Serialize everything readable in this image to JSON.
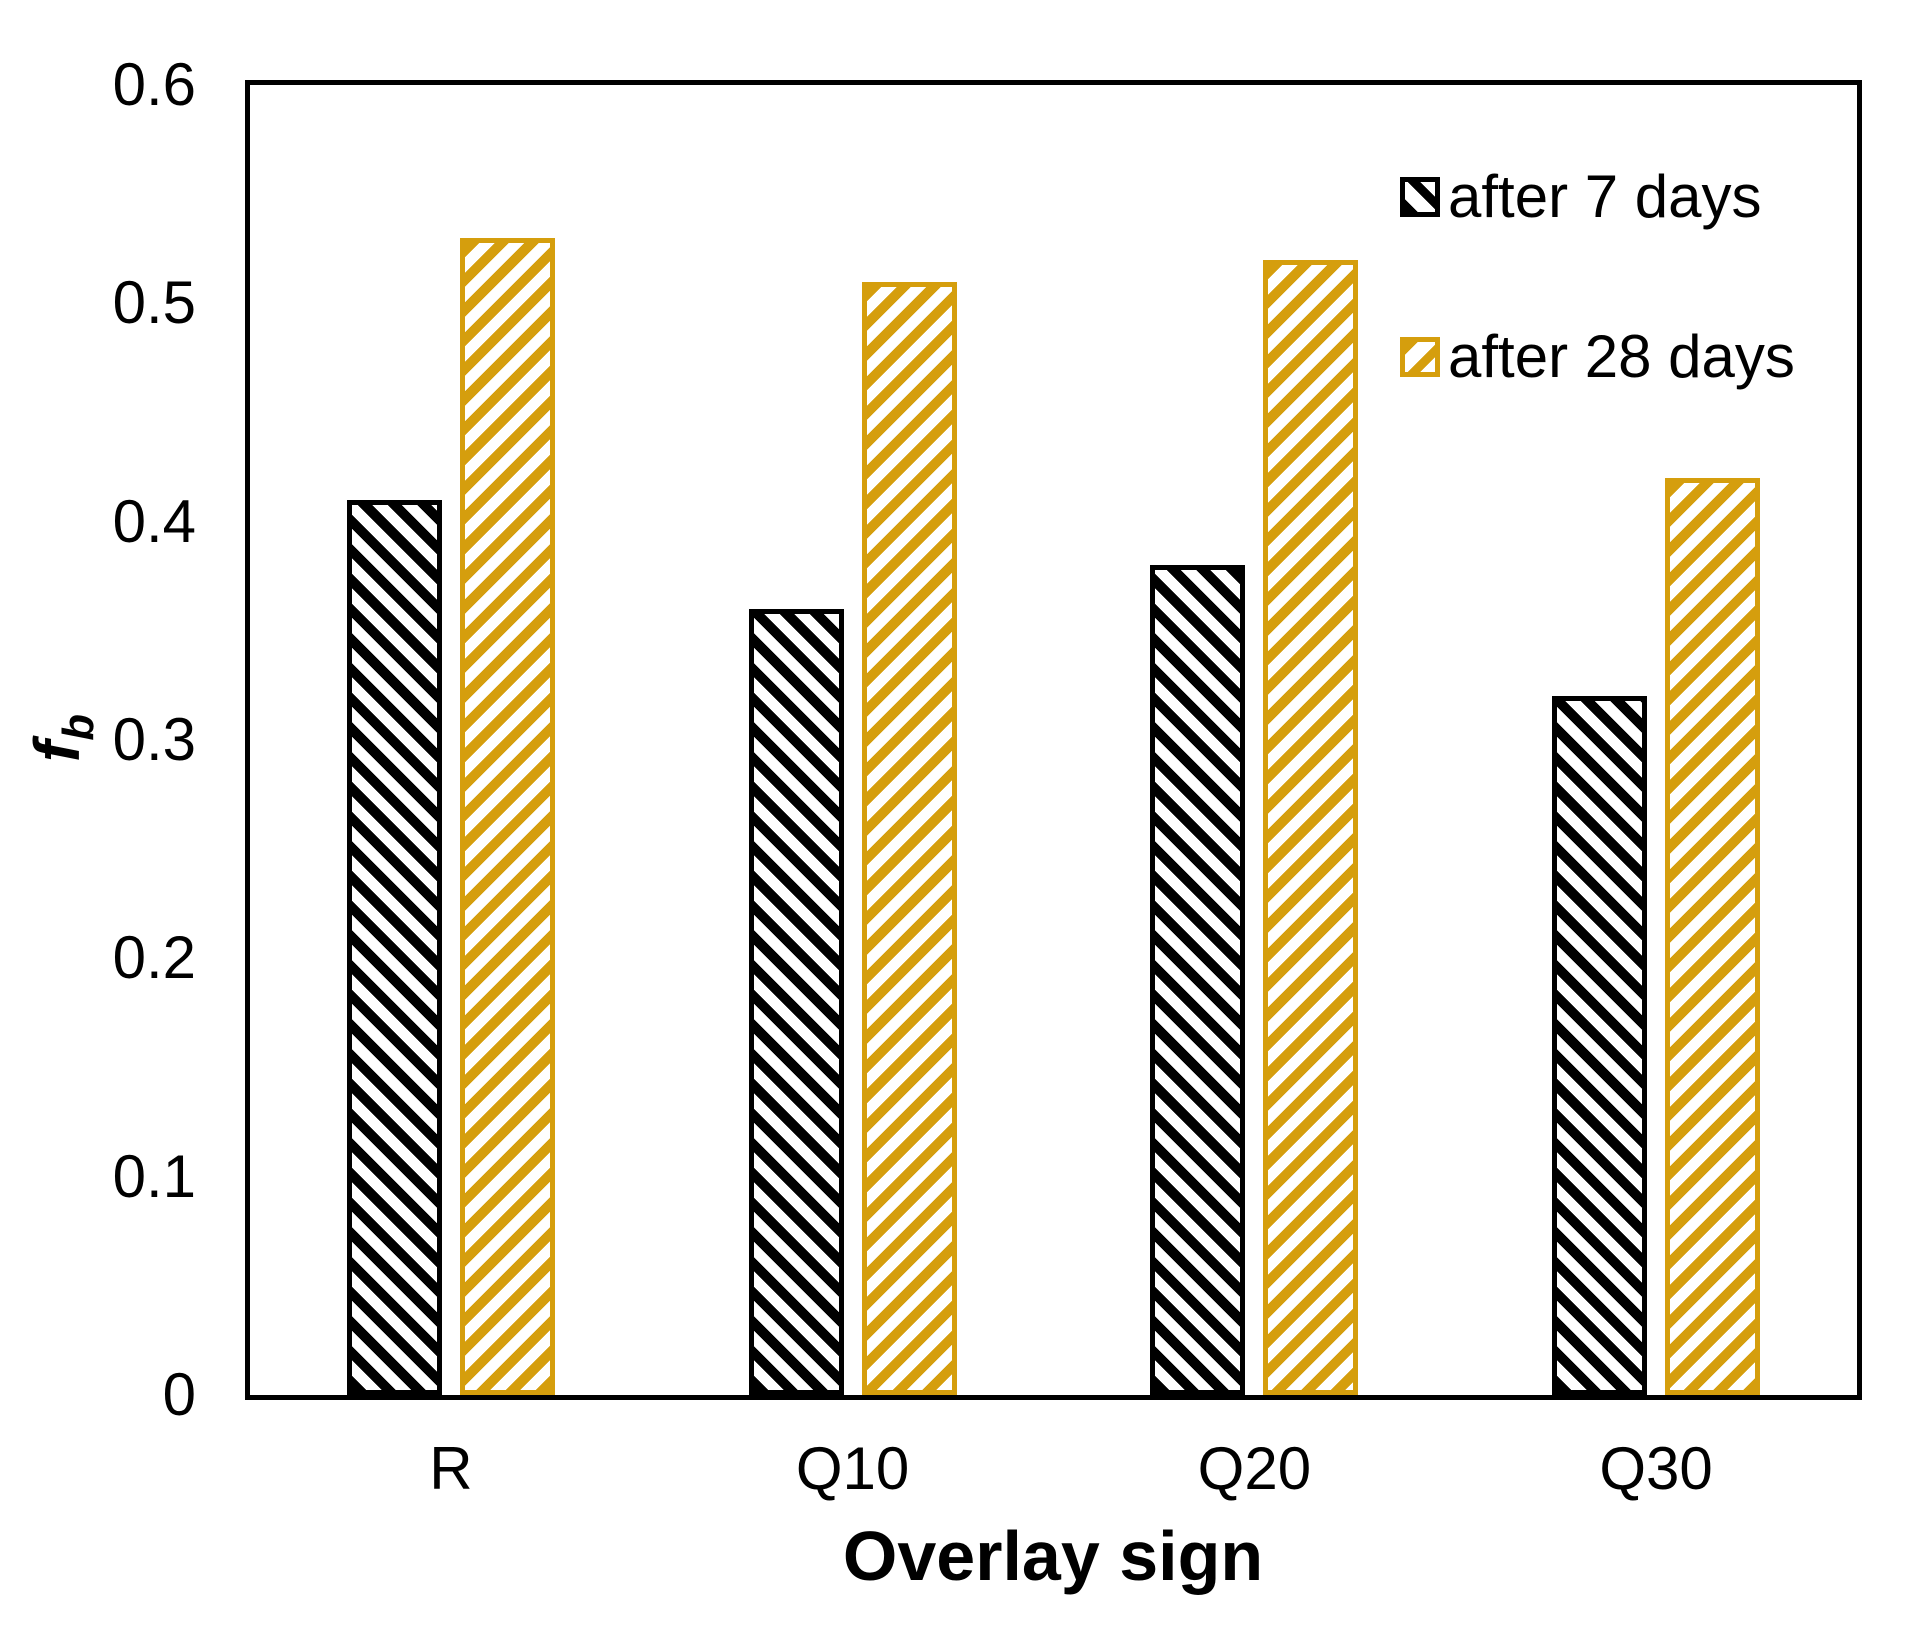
{
  "chart_data": {
    "type": "bar",
    "title": "",
    "xlabel": "Overlay sign",
    "ylabel": {
      "base": "f",
      "subscript": "b"
    },
    "categories": [
      "R",
      "Q10",
      "Q20",
      "Q30"
    ],
    "series": [
      {
        "name": "after 7 days",
        "color": "#000000",
        "hatch": "\\",
        "values": [
          0.41,
          0.36,
          0.38,
          0.32
        ]
      },
      {
        "name": "after 28 days",
        "color": "#D59E0D",
        "hatch": "/",
        "values": [
          0.53,
          0.51,
          0.52,
          0.42
        ]
      }
    ],
    "ylim": [
      0,
      0.6
    ],
    "yticks": [
      0,
      0.1,
      0.2,
      0.3,
      0.4,
      0.5,
      0.6
    ],
    "ytick_labels": [
      "0",
      "0.1",
      "0.2",
      "0.3",
      "0.4",
      "0.5",
      "0.6"
    ],
    "grid": false,
    "frame": "box",
    "legend_position": "top-right",
    "bar_background": "#ffffff"
  }
}
